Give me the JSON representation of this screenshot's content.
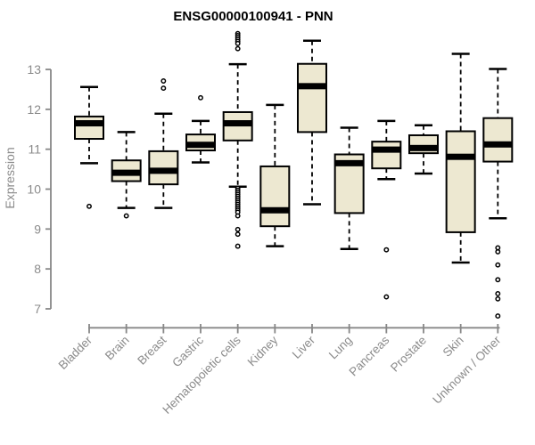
{
  "window": {
    "background": "#ffffff"
  },
  "chart_data": {
    "type": "boxplot",
    "title": "ENSG00000100941 - PNN",
    "xlabel": "",
    "ylabel": "Expression",
    "grid": false,
    "legend": null,
    "y_axis": {
      "min": 7,
      "max": 13,
      "ticks": [
        7,
        8,
        9,
        10,
        11,
        12,
        13
      ]
    },
    "categories": [
      "Bladder",
      "Brain",
      "Breast",
      "Gastric",
      "Hematopoietic cells",
      "Kidney",
      "Liver",
      "Lung",
      "Pancreas",
      "Prostate",
      "Skin",
      "Unknown / Other"
    ],
    "boxes": [
      {
        "category": "Bladder",
        "whisker_low": 10.65,
        "q1": 11.26,
        "median": 11.65,
        "q3": 11.82,
        "whisker_high": 12.56,
        "outliers": [
          9.57
        ]
      },
      {
        "category": "Brain",
        "whisker_low": 9.53,
        "q1": 10.2,
        "median": 10.41,
        "q3": 10.72,
        "whisker_high": 11.43,
        "outliers": [
          9.33
        ]
      },
      {
        "category": "Breast",
        "whisker_low": 9.53,
        "q1": 10.12,
        "median": 10.46,
        "q3": 10.95,
        "whisker_high": 11.89,
        "outliers": [
          12.71,
          12.53
        ]
      },
      {
        "category": "Gastric",
        "whisker_low": 10.67,
        "q1": 10.97,
        "median": 11.11,
        "q3": 11.37,
        "whisker_high": 11.71,
        "outliers": [
          12.29
        ]
      },
      {
        "category": "Hematopoietic cells",
        "whisker_low": 10.06,
        "q1": 11.22,
        "median": 11.65,
        "q3": 11.93,
        "whisker_high": 13.13,
        "outliers": [
          13.9,
          13.85,
          13.8,
          13.75,
          13.7,
          13.65,
          13.52,
          10.02,
          9.97,
          9.92,
          9.87,
          9.82,
          9.77,
          9.72,
          9.67,
          9.62,
          9.57,
          9.52,
          9.47,
          9.42,
          9.33,
          8.99,
          8.87,
          8.57
        ]
      },
      {
        "category": "Kidney",
        "whisker_low": 8.57,
        "q1": 9.07,
        "median": 9.47,
        "q3": 10.57,
        "whisker_high": 12.11,
        "outliers": []
      },
      {
        "category": "Liver",
        "whisker_low": 9.62,
        "q1": 11.43,
        "median": 12.58,
        "q3": 13.14,
        "whisker_high": 13.72,
        "outliers": []
      },
      {
        "category": "Lung",
        "whisker_low": 8.5,
        "q1": 9.4,
        "median": 10.65,
        "q3": 10.87,
        "whisker_high": 11.54,
        "outliers": []
      },
      {
        "category": "Pancreas",
        "whisker_low": 10.25,
        "q1": 10.52,
        "median": 10.99,
        "q3": 11.19,
        "whisker_high": 11.71,
        "outliers": [
          8.48,
          7.3
        ]
      },
      {
        "category": "Prostate",
        "whisker_low": 10.39,
        "q1": 10.9,
        "median": 11.03,
        "q3": 11.35,
        "whisker_high": 11.6,
        "outliers": []
      },
      {
        "category": "Skin",
        "whisker_low": 8.16,
        "q1": 8.92,
        "median": 10.81,
        "q3": 11.45,
        "whisker_high": 13.39,
        "outliers": []
      },
      {
        "category": "Unknown / Other",
        "whisker_low": 9.27,
        "q1": 10.69,
        "median": 11.12,
        "q3": 11.78,
        "whisker_high": 13.01,
        "outliers": [
          8.53,
          8.43,
          8.1,
          7.73,
          7.38,
          7.25,
          6.82
        ]
      }
    ],
    "colors": {
      "box_fill": "#EDE8D1",
      "box_border": "#000000",
      "median": "#000000",
      "whisker": "#000000",
      "outlier_stroke": "#000000",
      "outlier_fill": "#ffffff",
      "axis": "#878787",
      "tick_text": "#8b8b8b",
      "title_text": "#000000"
    }
  }
}
